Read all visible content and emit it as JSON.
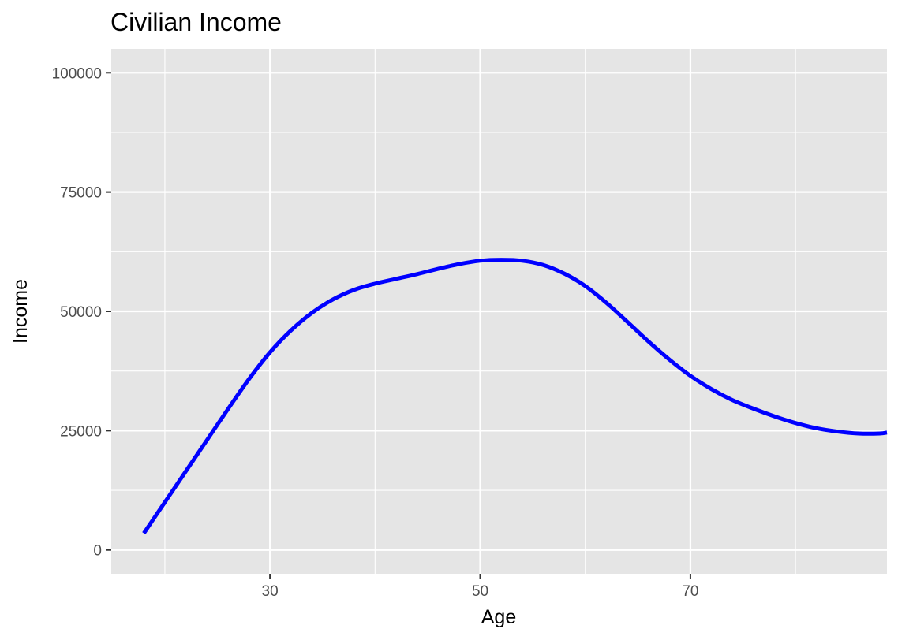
{
  "chart_data": {
    "type": "line",
    "title": "Civilian Income",
    "xlabel": "Age",
    "ylabel": "Income",
    "xlim": [
      14.9,
      88.7
    ],
    "ylim": [
      -5000,
      105000
    ],
    "x_ticks": [
      30,
      50,
      70
    ],
    "x_minor_ticks": [
      20,
      40,
      60,
      80
    ],
    "y_ticks": [
      0,
      25000,
      50000,
      75000,
      100000
    ],
    "y_minor_ticks": [
      12500,
      37500,
      62500,
      87500
    ],
    "grid": true,
    "panel_background": "#e5e5e5",
    "grid_color": "#ffffff",
    "series": [
      {
        "color": "#0000ff",
        "x": [
          18,
          20,
          22,
          24,
          26,
          28,
          30,
          32,
          34,
          36,
          38,
          40,
          42,
          44,
          46,
          48,
          50,
          52,
          54,
          56,
          58,
          60,
          62,
          64,
          66,
          68,
          70,
          72,
          74,
          76,
          78,
          80,
          82,
          84,
          86,
          88,
          88.7
        ],
        "y": [
          3500,
          10000,
          16500,
          23000,
          29500,
          35800,
          41400,
          46000,
          49700,
          52500,
          54500,
          55800,
          56800,
          57800,
          58900,
          59900,
          60600,
          60800,
          60600,
          59700,
          57900,
          55300,
          51800,
          47800,
          43700,
          39900,
          36500,
          33700,
          31400,
          29600,
          28000,
          26600,
          25500,
          24800,
          24400,
          24400,
          24600
        ]
      }
    ]
  }
}
